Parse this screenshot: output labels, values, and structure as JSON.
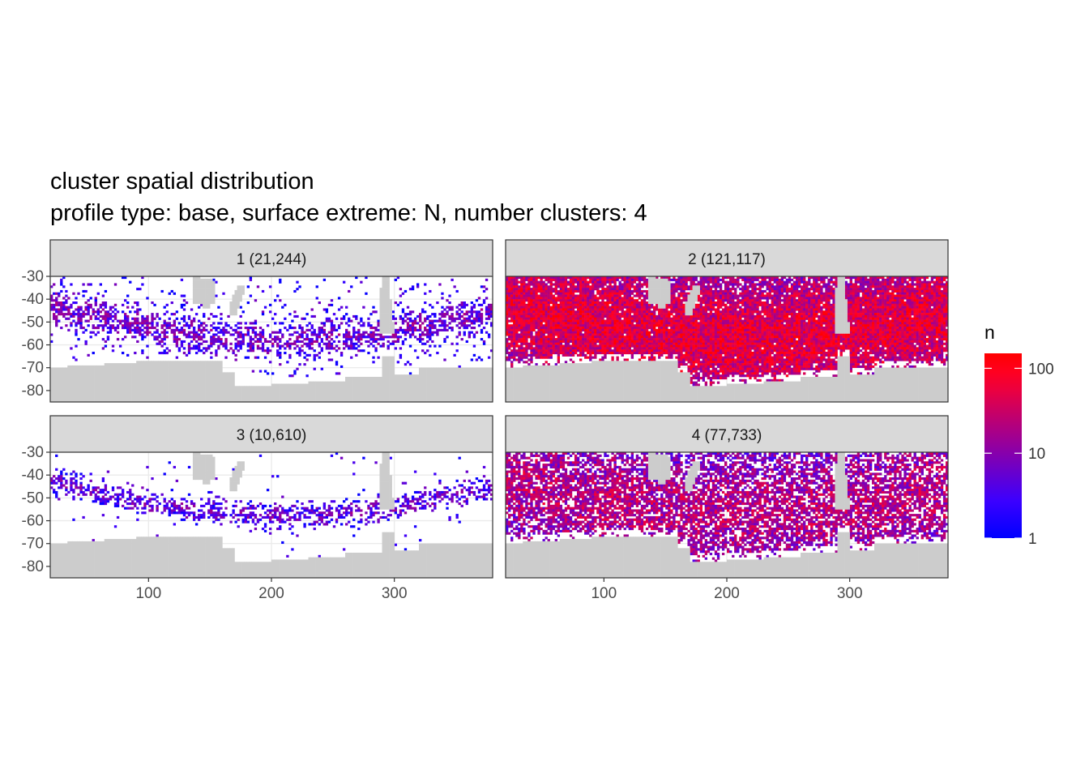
{
  "title_line1": "cluster spatial distribution",
  "title_line2": "profile type: base, surface extreme: N, number clusters: 4",
  "chart_data": {
    "type": "heatmap",
    "x_range": [
      20,
      380
    ],
    "y_range": [
      -85,
      -30
    ],
    "x_ticks": [
      100,
      200,
      300
    ],
    "x_tick_labels": [
      "100",
      "200",
      "300"
    ],
    "y_ticks": [
      -30,
      -40,
      -50,
      -60,
      -70,
      -80
    ],
    "y_tick_labels": [
      "-30",
      "-40",
      "-50",
      "-60",
      "-70",
      "-80"
    ],
    "grid": true,
    "fill_scale": {
      "name": "n",
      "transform": "log10",
      "limits": [
        1,
        150
      ],
      "breaks": [
        1,
        10,
        100
      ],
      "break_labels": [
        "1",
        "10",
        "100"
      ],
      "low_color": "#0000ff",
      "high_color": "#ff0000",
      "legend_position": "right"
    },
    "land_color": "#cccccc",
    "panels": [
      {
        "label": "1 (21,244)",
        "cluster": 1,
        "count": 21244
      },
      {
        "label": "2 (121,117)",
        "cluster": 2,
        "count": 121117
      },
      {
        "label": "3 (10,610)",
        "cluster": 3,
        "count": 10610
      },
      {
        "label": "4 (77,733)",
        "cluster": 4,
        "count": 77733
      }
    ]
  }
}
